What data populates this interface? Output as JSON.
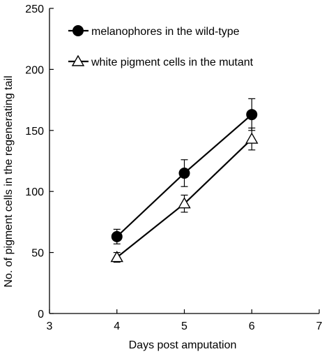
{
  "chart_data": {
    "type": "line",
    "xlabel": "Days post amputation",
    "ylabel": "No. of pigment cells in the regenerating tail",
    "xlim": [
      3,
      7
    ],
    "ylim": [
      0,
      250
    ],
    "x_ticks": [
      "3",
      "4",
      "5",
      "6",
      "7"
    ],
    "y_ticks": [
      "0",
      "50",
      "100",
      "150",
      "200",
      "250"
    ],
    "grid": false,
    "legend_position": "top-left",
    "series": [
      {
        "name": "melanophores in the wild-type",
        "marker": "filled-circle",
        "color": "#000000",
        "x": [
          4,
          5,
          6
        ],
        "y": [
          63,
          115,
          163
        ],
        "error": [
          6,
          11,
          13
        ]
      },
      {
        "name": "white pigment cells in the mutant",
        "marker": "open-triangle",
        "color": "#000000",
        "x": [
          4,
          5,
          6
        ],
        "y": [
          46,
          90,
          143
        ],
        "error": [
          4,
          7,
          9
        ]
      }
    ]
  }
}
